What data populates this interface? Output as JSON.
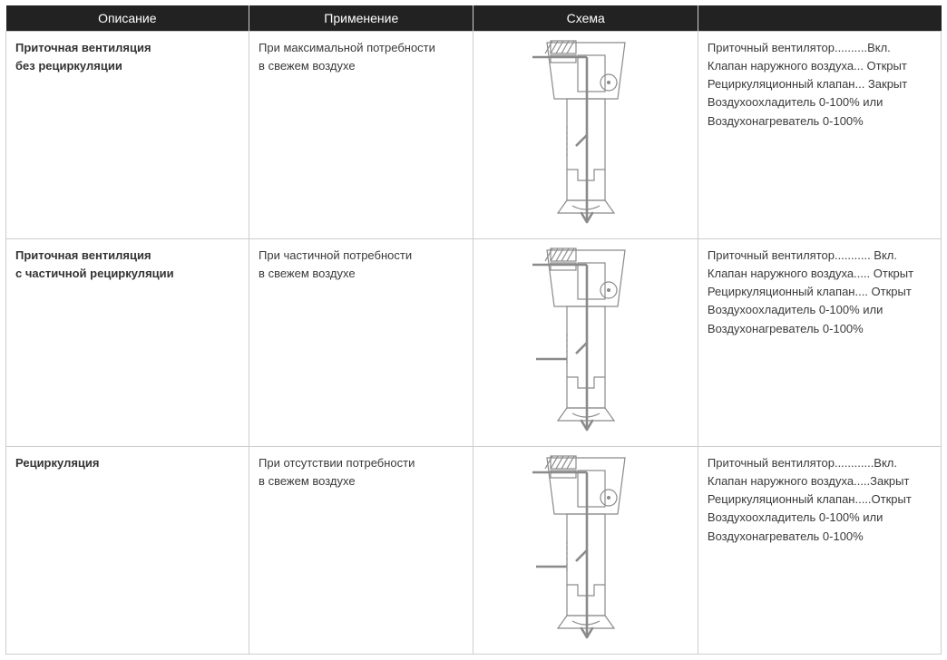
{
  "headers": [
    "Описание",
    "Применение",
    "Схема",
    ""
  ],
  "palette": {
    "header_bg": "#222222",
    "header_fg": "#ffffff",
    "border": "#cdcdcd",
    "text": "#3a3a3a",
    "diagram_stroke": "#8a8a8a",
    "diagram_fill_hatch": "#9a9a9a",
    "diagram_bg": "#ffffff"
  },
  "rows": [
    {
      "description_l1": "Приточная вентиляция",
      "description_l2": "без рециркуляции",
      "application_l1": "При максимальной потребности",
      "application_l2": "в свежем воздухе",
      "status": {
        "s1": "Приточный вентилятор..........Вкл.",
        "s2": "Клапан наружного воздуха... Открыт",
        "s3": "Рециркуляционный клапан... Закрыт",
        "s4": "Воздухоохладитель 0-100% или",
        "s5": "Воздухонагреватель 0-100%"
      },
      "scheme": {
        "side_inlet": false
      }
    },
    {
      "description_l1": "Приточная вентиляция",
      "description_l2": "с частичной рециркуляции",
      "application_l1": "При частичной потребности",
      "application_l2": "в свежем воздухе",
      "status": {
        "s1": "Приточный вентилятор........... Вкл.",
        "s2": "Клапан наружного воздуха..... Открыт",
        "s3": "Рециркуляционный клапан.... Открыт",
        "s4": "Воздухоохладитель 0-100% или",
        "s5": "Воздухонагреватель 0-100%"
      },
      "scheme": {
        "side_inlet": true
      }
    },
    {
      "description_l1": "Рециркуляция",
      "description_l2": "",
      "application_l1": "При отсутствии потребности",
      "application_l2": "в свежем воздухе",
      "status": {
        "s1": "Приточный вентилятор............Вкл.",
        "s2": "Клапан наружного воздуха.....Закрыт",
        "s3": "Рециркуляционный клапан.....Открыт",
        "s4": "Воздухоохладитель 0-100% или",
        "s5": "Воздухонагреватель 0-100%"
      },
      "scheme": {
        "side_inlet": true
      }
    }
  ]
}
